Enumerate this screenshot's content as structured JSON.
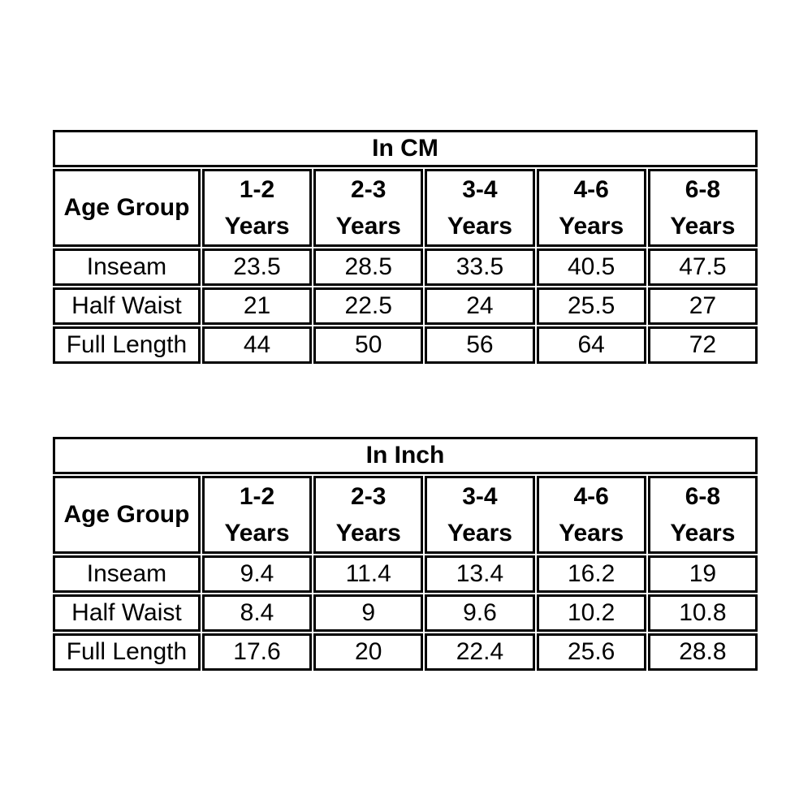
{
  "colors": {
    "border": "#000000",
    "text": "#000000",
    "background": "#ffffff"
  },
  "tables": [
    {
      "title": "In CM",
      "corner": "Age Group",
      "columns": [
        {
          "range": "1-2",
          "suffix": "Years"
        },
        {
          "range": "2-3",
          "suffix": "Years"
        },
        {
          "range": "3-4",
          "suffix": "Years"
        },
        {
          "range": "4-6",
          "suffix": "Years"
        },
        {
          "range": "6-8",
          "suffix": "Years"
        }
      ],
      "rows": [
        {
          "label": "Inseam",
          "values": [
            "23.5",
            "28.5",
            "33.5",
            "40.5",
            "47.5"
          ]
        },
        {
          "label": "Half Waist",
          "values": [
            "21",
            "22.5",
            "24",
            "25.5",
            "27"
          ]
        },
        {
          "label": "Full Length",
          "values": [
            "44",
            "50",
            "56",
            "64",
            "72"
          ]
        }
      ]
    },
    {
      "title": "In Inch",
      "corner": "Age Group",
      "columns": [
        {
          "range": "1-2",
          "suffix": "Years"
        },
        {
          "range": "2-3",
          "suffix": "Years"
        },
        {
          "range": "3-4",
          "suffix": "Years"
        },
        {
          "range": "4-6",
          "suffix": "Years"
        },
        {
          "range": "6-8",
          "suffix": "Years"
        }
      ],
      "rows": [
        {
          "label": "Inseam",
          "values": [
            "9.4",
            "11.4",
            "13.4",
            "16.2",
            "19"
          ]
        },
        {
          "label": "Half Waist",
          "values": [
            "8.4",
            "9",
            "9.6",
            "10.2",
            "10.8"
          ]
        },
        {
          "label": "Full Length",
          "values": [
            "17.6",
            "20",
            "22.4",
            "25.6",
            "28.8"
          ]
        }
      ]
    }
  ]
}
